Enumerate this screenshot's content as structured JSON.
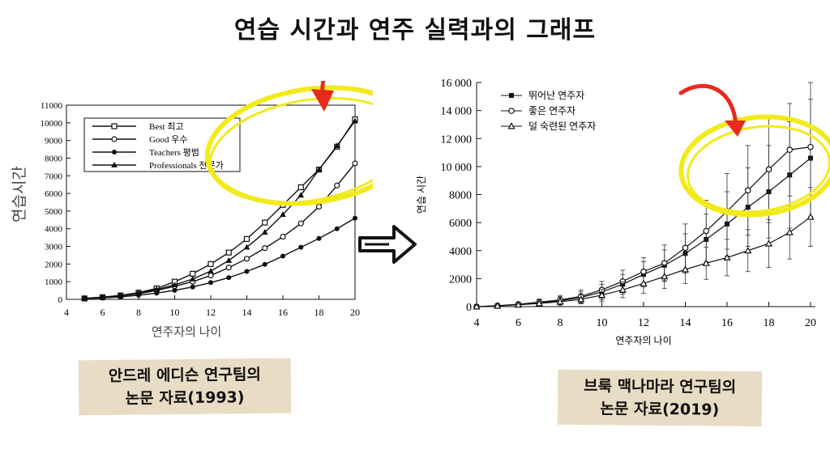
{
  "title": "연습 시간과 연주 실력과의 그래프",
  "captions": {
    "left": {
      "line1": "안드레 에디슨 연구팀의",
      "line2": "논문 자료(1993)"
    },
    "right": {
      "line1": "브룩 맥나마라 연구팀의",
      "line2": "논문 자료(2019)"
    }
  },
  "colors": {
    "highlight": "#f2ea1b",
    "arrow": "#e8291c",
    "caption_bg": "#e9dcc4"
  },
  "chart_data": [
    {
      "type": "line",
      "xlabel": "연주자의 나이",
      "ylabel": "연습시간",
      "xlim": [
        4,
        20
      ],
      "ylim": [
        0,
        11000
      ],
      "xticks": [
        4,
        6,
        8,
        10,
        12,
        14,
        16,
        18,
        20
      ],
      "yticks": [
        0,
        1000,
        2000,
        3000,
        4000,
        5000,
        6000,
        7000,
        8000,
        9000,
        10000,
        11000
      ],
      "legend_position": "top-left",
      "x": [
        5,
        6,
        7,
        8,
        9,
        10,
        11,
        12,
        13,
        14,
        15,
        16,
        17,
        18,
        19,
        20
      ],
      "series": [
        {
          "name": "Best 최고",
          "marker": "square",
          "values": [
            50,
            120,
            220,
            380,
            620,
            1000,
            1450,
            2000,
            2650,
            3420,
            4350,
            5350,
            6350,
            7350,
            8650,
            10200
          ]
        },
        {
          "name": "Good 우수",
          "marker": "circle",
          "values": [
            50,
            100,
            190,
            320,
            500,
            740,
            1000,
            1350,
            1800,
            2300,
            2900,
            3550,
            4300,
            5250,
            6450,
            7700
          ]
        },
        {
          "name": "Teachers 평범",
          "marker": "dot",
          "values": [
            40,
            80,
            140,
            230,
            350,
            510,
            700,
            950,
            1230,
            1580,
            1980,
            2450,
            2950,
            3450,
            4000,
            4600
          ]
        },
        {
          "name": "Professionals 전문가",
          "marker": "triangle",
          "values": [
            60,
            120,
            220,
            360,
            560,
            820,
            1150,
            1600,
            2200,
            2950,
            3800,
            4800,
            5900,
            7350,
            8700,
            10100
          ]
        }
      ]
    },
    {
      "type": "line",
      "xlabel": "연주자의 나이",
      "ylabel": "연습 시간",
      "xlim": [
        4,
        20
      ],
      "ylim": [
        0,
        16000
      ],
      "xticks": [
        4,
        6,
        8,
        10,
        12,
        14,
        16,
        18,
        20
      ],
      "yticks": [
        0,
        2000,
        4000,
        6000,
        8000,
        10000,
        12000,
        14000,
        16000
      ],
      "ytick_labels": [
        "0",
        "2000",
        "4000",
        "6000",
        "8000",
        "10 000",
        "12 000",
        "14 000",
        "16 000"
      ],
      "legend_position": "top-left",
      "x": [
        4,
        5,
        6,
        7,
        8,
        9,
        10,
        11,
        12,
        13,
        14,
        15,
        16,
        17,
        18,
        19,
        20
      ],
      "series": [
        {
          "name": "뛰어난 연주자",
          "marker": "square",
          "values": [
            0,
            60,
            150,
            280,
            420,
            650,
            1050,
            1600,
            2300,
            2950,
            3800,
            4800,
            5900,
            7100,
            8200,
            9400,
            10600
          ],
          "error": [
            0,
            50,
            120,
            200,
            300,
            400,
            550,
            700,
            900,
            1100,
            1400,
            1800,
            2300,
            2800,
            3300,
            3800,
            4200
          ]
        },
        {
          "name": "좋은 연주자",
          "marker": "circle",
          "values": [
            0,
            70,
            170,
            320,
            480,
            730,
            1200,
            1800,
            2500,
            3100,
            4200,
            5400,
            6800,
            8300,
            9800,
            11200,
            11400
          ],
          "error": [
            0,
            60,
            130,
            220,
            320,
            450,
            600,
            800,
            1000,
            1300,
            1700,
            2200,
            2700,
            3200,
            3800,
            3300,
            5000
          ]
        },
        {
          "name": "덜 숙련된 연주자",
          "marker": "triangle",
          "values": [
            0,
            50,
            130,
            230,
            350,
            520,
            820,
            1200,
            1650,
            2150,
            2650,
            3100,
            3500,
            4000,
            4500,
            5300,
            6400
          ],
          "error": [
            0,
            40,
            100,
            160,
            230,
            320,
            430,
            560,
            700,
            850,
            1000,
            1150,
            1300,
            1500,
            1700,
            1900,
            2100
          ]
        }
      ]
    }
  ]
}
